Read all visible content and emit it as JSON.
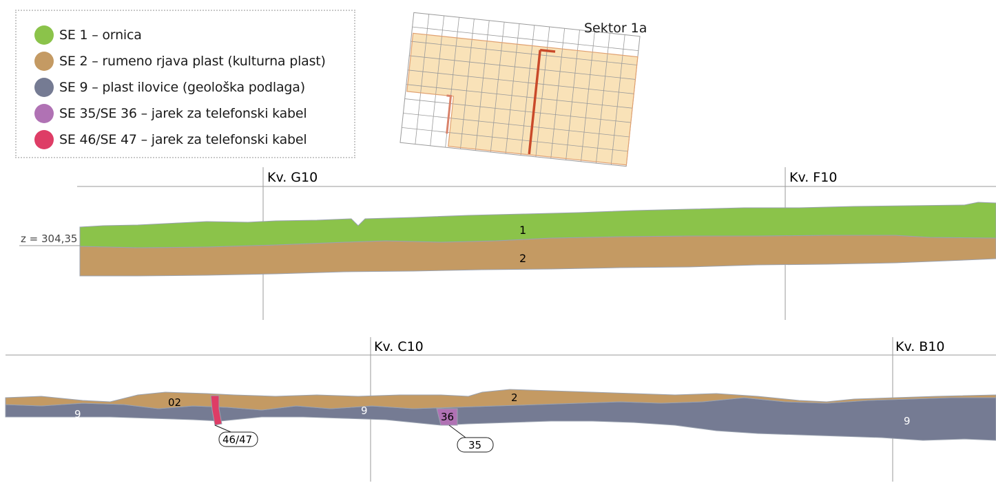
{
  "legend": {
    "items": [
      {
        "label": "SE 1 – ornica",
        "color": "#8bc34a"
      },
      {
        "label": "SE 2 – rumeno rjava plast (kulturna plast)",
        "color": "#c49a63"
      },
      {
        "label": "SE 9 – plast ilovice (geološka podlaga)",
        "color": "#757b93"
      },
      {
        "label": "SE 35/SE 36 – jarek za telefonski kabel",
        "color": "#b072b4"
      },
      {
        "label": "SE 46/SE 47 – jarek za telefonski kabel",
        "color": "#de3d66"
      }
    ]
  },
  "sector": {
    "label": "Sektor 1a"
  },
  "upper_profile": {
    "datum": "z = 304,35",
    "grid_g10": "Kv. G10",
    "grid_f10": "Kv. F10",
    "layer_1": "1",
    "layer_2": "2"
  },
  "lower_profile": {
    "grid_c10": "Kv. C10",
    "grid_b10": "Kv. B10",
    "layer_9a": "9",
    "layer_9b": "9",
    "layer_9c": "9",
    "layer_02": "02",
    "layer_2": "2",
    "fill_36": "36",
    "callout_4647": "46/47",
    "callout_35": "35"
  }
}
